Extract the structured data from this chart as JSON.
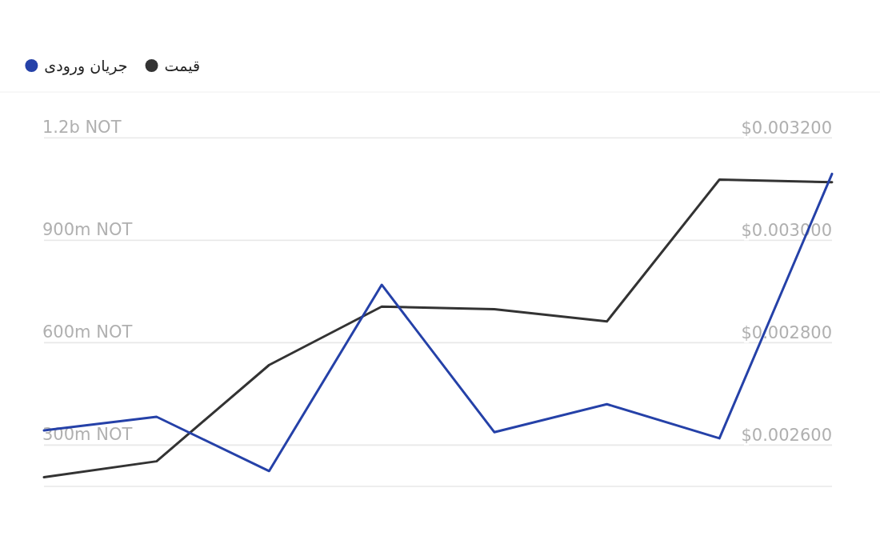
{
  "chart_data": {
    "type": "line",
    "categories": [
      null,
      null,
      null,
      null,
      null,
      null,
      null,
      null
    ],
    "series": [
      {
        "name": "قیمت",
        "color": "#333333",
        "axis": "y2",
        "values": [
          0.002538,
          0.002569,
          0.002757,
          0.002871,
          0.002866,
          0.002842,
          0.003119,
          0.003114
        ]
      },
      {
        "name": "جریان ورودی",
        "color": "#2541a8",
        "values": [
          342000000,
          382000000,
          223000000,
          769000000,
          337000000,
          419000000,
          319000000,
          1094000000
        ]
      }
    ],
    "ylim": [
      178000000,
      1334000000
    ],
    "yticks": [
      {
        "value": 300000000,
        "label": "300m NOT"
      },
      {
        "value": 600000000,
        "label": "600m NOT"
      },
      {
        "value": 900000000,
        "label": "900m NOT"
      },
      {
        "value": 1200000000,
        "label": "1.2b NOT"
      }
    ],
    "y2lim": [
      0.00252,
      0.00329
    ],
    "y2ticks": [
      {
        "value": 0.0026,
        "label": "$0.002600"
      },
      {
        "value": 0.0028,
        "label": "$0.002800"
      },
      {
        "value": 0.003,
        "label": "$0.003000"
      },
      {
        "value": 0.0032,
        "label": "$0.003200"
      }
    ],
    "grid": "y",
    "legend": "top left",
    "marker": "none",
    "line_style": "solid"
  }
}
